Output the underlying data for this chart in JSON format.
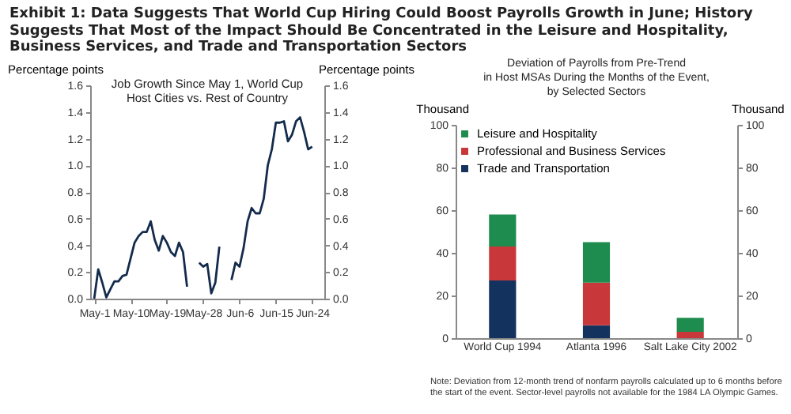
{
  "chart_data": [
    {
      "type": "line",
      "title": "Exhibit 1: Data Suggests That World Cup Hiring Could Boost Payrolls Growth in June; History Suggests That Most of the Impact Should Be Concentrated in the Leisure and Hospitality, Business Services, and Trade and Transportation Sectors",
      "subtitle": "Job Growth Since May 1, World Cup\nHost Cities vs. Rest of Country",
      "ylabel": "Percentage points",
      "y2label": "Percentage points",
      "x": [
        "--05-01",
        "--05-02",
        "--05-03",
        "--05-04",
        "--05-05",
        "--05-06",
        "--05-07",
        "--05-08",
        "--05-09",
        "--05-10",
        "--05-11",
        "--05-12",
        "--05-13",
        "--05-14",
        "--05-15",
        "--05-16",
        "--05-17",
        "--05-18",
        "--05-19",
        "--05-20",
        "--05-21",
        "--05-22",
        "--05-23",
        "--05-24",
        "--05-25",
        "--05-26",
        "--05-27",
        "--05-28",
        "--05-29",
        "--05-30",
        "--05-31",
        "--06-01",
        "--06-02",
        "--06-03",
        "--06-04",
        "--06-05",
        "--06-06",
        "--06-07",
        "--06-08",
        "--06-09",
        "--06-10",
        "--06-11",
        "--06-12",
        "--06-13",
        "--06-14",
        "--06-15",
        "--06-16",
        "--06-17",
        "--06-18",
        "--06-19",
        "--06-20",
        "--06-21",
        "--06-22",
        "--06-23",
        "--06-24"
      ],
      "series": [
        {
          "color": "#142b4c",
          "values": [
            0.0,
            0.22,
            0.12,
            0.01,
            0.07,
            0.13,
            0.13,
            0.17,
            0.18,
            0.3,
            0.42,
            0.47,
            0.5,
            0.5,
            0.58,
            0.44,
            0.36,
            0.47,
            0.42,
            0.35,
            0.32,
            0.42,
            0.35,
            0.09,
            null,
            null,
            0.27,
            0.24,
            0.26,
            0.04,
            0.12,
            0.39,
            null,
            null,
            0.14,
            0.27,
            0.24,
            0.38,
            0.58,
            0.68,
            0.64,
            0.64,
            0.75,
            1.0,
            1.12,
            1.32,
            1.32,
            1.33,
            1.18,
            1.23,
            1.33,
            1.36,
            1.25,
            1.12,
            1.14
          ]
        }
      ],
      "xlim": [
        "--04-30",
        "--06-27"
      ],
      "xticks": [
        {
          "value": "--05-01",
          "label": "May-1"
        },
        {
          "value": "--05-10",
          "label": "May-10"
        },
        {
          "value": "--05-19",
          "label": "May-19"
        },
        {
          "value": "--05-28",
          "label": "May-28"
        },
        {
          "value": "--06-06",
          "label": "Jun-6"
        },
        {
          "value": "--06-15",
          "label": "Jun-15"
        },
        {
          "value": "--06-24",
          "label": "Jun-24"
        }
      ],
      "ylim": [
        0,
        1.6
      ],
      "yticks": [
        {
          "value": 0,
          "label": "0.0"
        },
        {
          "value": 0.2,
          "label": "0.2"
        },
        {
          "value": 0.4,
          "label": "0.4"
        },
        {
          "value": 0.6,
          "label": "0.6"
        },
        {
          "value": 0.8,
          "label": "0.8"
        },
        {
          "value": 1,
          "label": "1.0"
        },
        {
          "value": 1.2,
          "label": "1.2"
        },
        {
          "value": 1.4,
          "label": "1.4"
        },
        {
          "value": 1.6,
          "label": "1.6"
        }
      ],
      "y2lim": [
        0,
        1.6
      ],
      "y2ticks": [
        {
          "value": 0,
          "label": "0.0"
        },
        {
          "value": 0.2,
          "label": "0.2"
        },
        {
          "value": 0.4,
          "label": "0.4"
        },
        {
          "value": 0.6,
          "label": "0.6"
        },
        {
          "value": 0.8,
          "label": "0.8"
        },
        {
          "value": 1,
          "label": "1.0"
        },
        {
          "value": 1.2,
          "label": "1.2"
        },
        {
          "value": 1.4,
          "label": "1.4"
        },
        {
          "value": 1.6,
          "label": "1.6"
        }
      ],
      "line_style": "solid",
      "marker": "none",
      "legend": false,
      "grid": false
    },
    {
      "type": "bar",
      "stacked": true,
      "title": "Deviation of Payrolls from Pre-Trend\nin Host MSAs During the Months of the Event,\nby Selected Sectors",
      "ylabel": "Thousand",
      "y2label": "Thousand",
      "categories": [
        "World Cup 1994",
        "Atlanta 1996",
        "Salt Lake City 2002"
      ],
      "series": [
        {
          "name": "Trade and Transportation",
          "color": "#14325e",
          "values": [
            27,
            6,
            0
          ]
        },
        {
          "name": "Professional and Business Services",
          "color": "#c8373a",
          "values": [
            16,
            20,
            3
          ]
        },
        {
          "name": "Leisure and Hospitality",
          "color": "#1e8c4e",
          "values": [
            15,
            19,
            6.5
          ]
        }
      ],
      "ylim": [
        0,
        100
      ],
      "yticks": [
        0,
        20,
        40,
        60,
        80,
        100
      ],
      "y2lim": [
        0,
        100
      ],
      "y2ticks": [
        0,
        20,
        40,
        60,
        80,
        100
      ],
      "legend": "top",
      "grid": false,
      "annotations": [
        "Note: Deviation from 12-month trend of nonfarm payrolls calculated up to 6 months before the start of the event. Sector-level payrolls not available for the 1984 LA Olympic Games."
      ]
    }
  ]
}
